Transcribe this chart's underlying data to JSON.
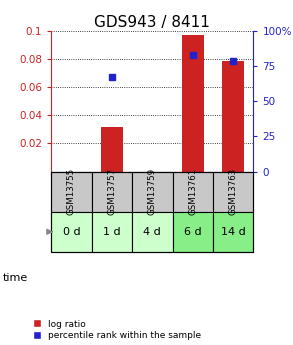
{
  "title": "GDS943 / 8411",
  "samples": [
    "GSM13755",
    "GSM13757",
    "GSM13759",
    "GSM13761",
    "GSM13763"
  ],
  "time_labels": [
    "0 d",
    "1 d",
    "4 d",
    "6 d",
    "14 d"
  ],
  "log_ratio": [
    0.0,
    0.032,
    0.0,
    0.097,
    0.079
  ],
  "percentile_rank": [
    null,
    0.067,
    null,
    0.083,
    0.079
  ],
  "ylim_left": [
    0.0,
    0.1
  ],
  "ylim_right": [
    0,
    100
  ],
  "yticks_left": [
    0.02,
    0.04,
    0.06,
    0.08,
    0.1
  ],
  "yticks_right": [
    0,
    25,
    50,
    75,
    100
  ],
  "ytick_labels_left": [
    "0.02",
    "0.04",
    "0.06",
    "0.08",
    "0.1"
  ],
  "ytick_labels_right": [
    "0",
    "25",
    "50",
    "75",
    "100%"
  ],
  "bar_color": "#cc2222",
  "marker_color": "#2222cc",
  "title_fontsize": 11,
  "bg_color_gsm": "#c8c8c8",
  "bg_color_time_0": "#ccffcc",
  "bg_color_time_1": "#ccffcc",
  "bg_color_time_2": "#ccffcc",
  "bg_color_time_3": "#88ee88",
  "bg_color_time_4": "#88ee88",
  "bar_width": 0.55,
  "marker_size": 5
}
